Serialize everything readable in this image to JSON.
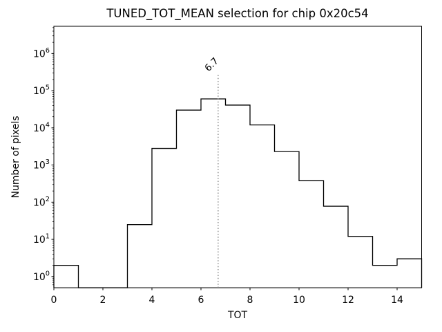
{
  "figure": {
    "background": "#ffffff"
  },
  "chart_data": {
    "type": "histogram_step",
    "title": "TUNED_TOT_MEAN selection for chip 0x20c54",
    "xlabel": "TOT",
    "ylabel": "Number of pixels",
    "yscale": "log",
    "grid": false,
    "legend": "none",
    "line_color": "#000000",
    "bin_edges": [
      0,
      1,
      2,
      3,
      4,
      5,
      6,
      7,
      8,
      9,
      10,
      11,
      12,
      13,
      14,
      15
    ],
    "counts": [
      2,
      0,
      0,
      25,
      2800,
      30000,
      60000,
      41000,
      12000,
      2300,
      380,
      78,
      12,
      2,
      3
    ],
    "xlim": [
      0,
      15
    ],
    "ylim": [
      0.5,
      5400000
    ],
    "x_ticks": [
      0,
      2,
      4,
      6,
      8,
      10,
      12,
      14
    ],
    "y_tick_exponents": [
      0,
      1,
      2,
      3,
      4,
      5,
      6
    ],
    "threshold": {
      "value": 6.7,
      "label": "6.7",
      "line_color": "#888888",
      "label_color": "#999999",
      "line_style": "dotted"
    }
  }
}
